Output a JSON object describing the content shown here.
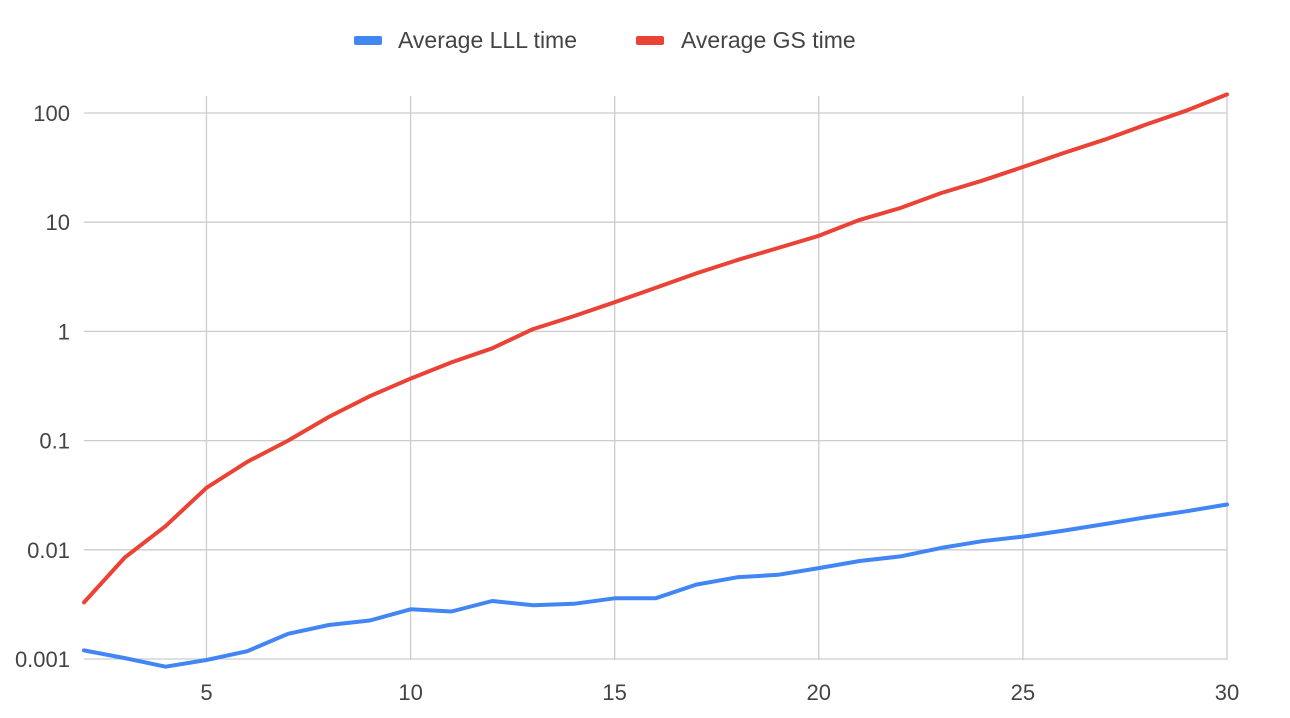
{
  "chart_data": {
    "type": "line",
    "title": "",
    "xlabel": "",
    "ylabel": "",
    "y_scale": "log",
    "xlim": [
      2,
      30
    ],
    "ylim": [
      0.001,
      150
    ],
    "grid": true,
    "legend_position": "top",
    "x_ticks": [
      5,
      10,
      15,
      20,
      25,
      30
    ],
    "x_tick_labels": [
      "5",
      "10",
      "15",
      "20",
      "25",
      "30"
    ],
    "y_ticks": [
      0.001,
      0.01,
      0.1,
      1,
      10,
      100
    ],
    "y_tick_labels": [
      "0.001",
      "0.01",
      "0.1",
      "1",
      "10",
      "100"
    ],
    "x": [
      2,
      3,
      4,
      5,
      6,
      7,
      8,
      9,
      10,
      11,
      12,
      13,
      14,
      15,
      16,
      17,
      18,
      19,
      20,
      21,
      22,
      23,
      24,
      25,
      26,
      27,
      28,
      29,
      30
    ],
    "series": [
      {
        "name": "Average LLL time",
        "color": "#4285f4",
        "values": [
          0.0012,
          0.00102,
          0.00085,
          0.00098,
          0.00118,
          0.0017,
          0.00205,
          0.00225,
          0.00285,
          0.00272,
          0.0034,
          0.0031,
          0.0032,
          0.0036,
          0.0036,
          0.0048,
          0.0056,
          0.0059,
          0.0068,
          0.0079,
          0.0087,
          0.0104,
          0.012,
          0.0132,
          0.015,
          0.0172,
          0.0198,
          0.0225,
          0.026
        ]
      },
      {
        "name": "Average GS time",
        "color": "#ea4335",
        "values": [
          0.0033,
          0.0085,
          0.0165,
          0.037,
          0.064,
          0.1,
          0.165,
          0.255,
          0.37,
          0.52,
          0.7,
          1.05,
          1.38,
          1.85,
          2.5,
          3.4,
          4.5,
          5.8,
          7.5,
          10.5,
          13.5,
          18.5,
          24.0,
          32.0,
          43.0,
          57.0,
          78.0,
          105.0,
          148.0
        ]
      }
    ]
  }
}
